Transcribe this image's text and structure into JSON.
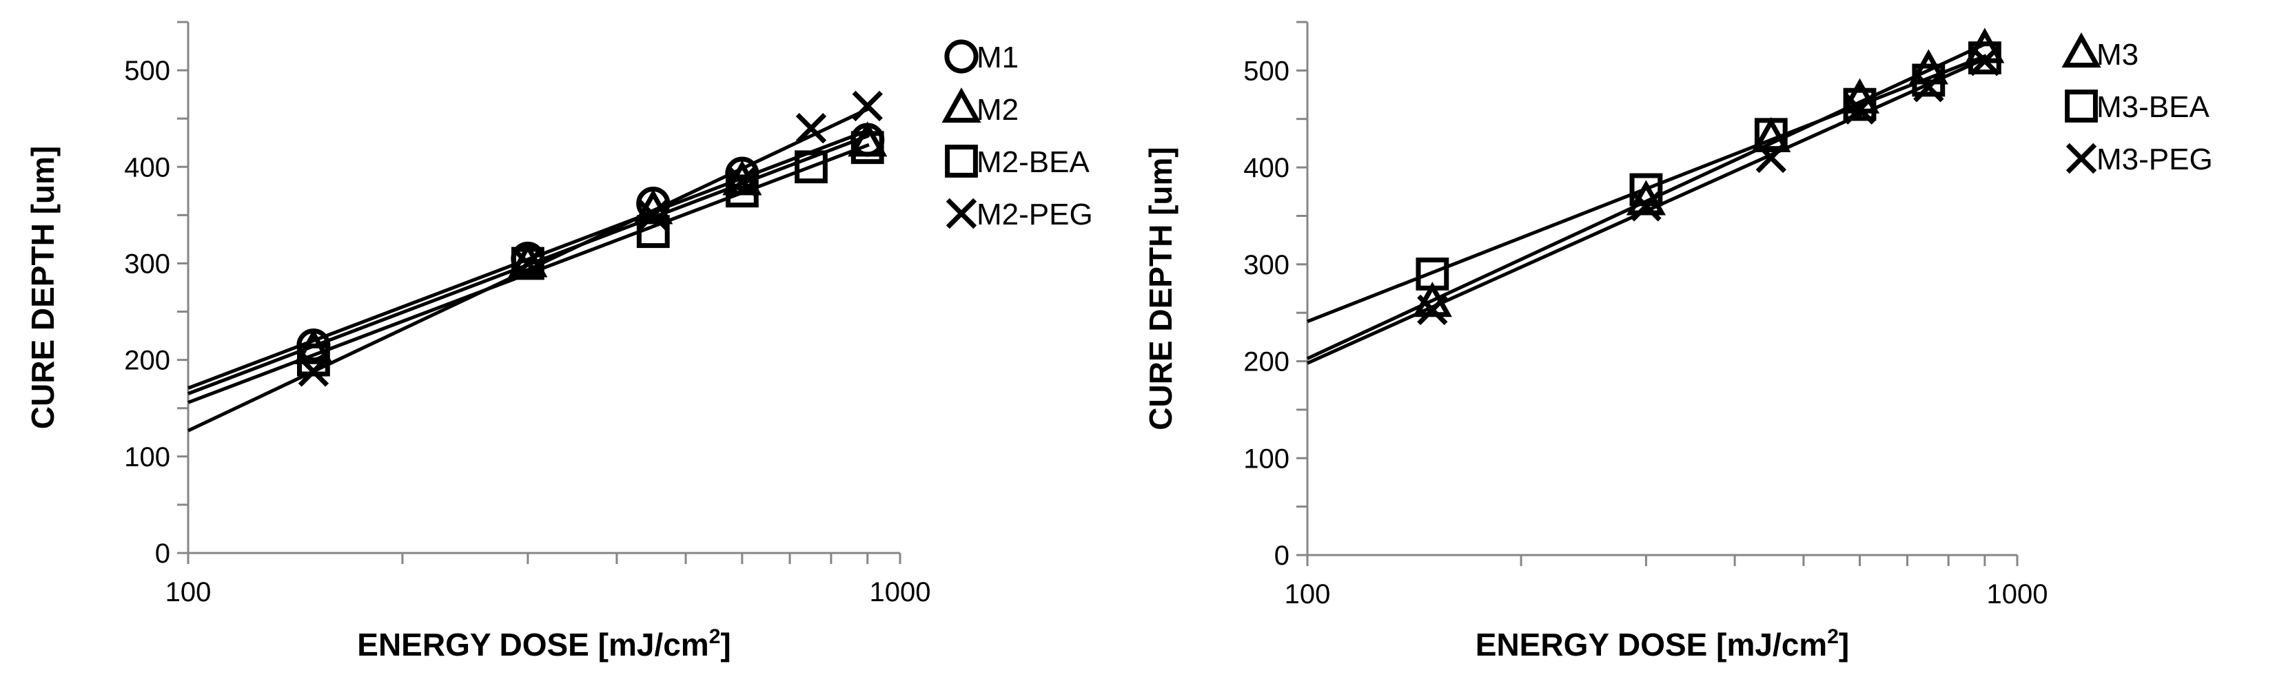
{
  "chart_data": [
    {
      "type": "scatter",
      "x_scale": "log",
      "xlim": [
        100,
        1000
      ],
      "ylim": [
        0,
        550
      ],
      "xlabel": "ENERGY DOSE [mJ/cm",
      "xlabel_superscript": "2",
      "xlabel_suffix": "]",
      "ylabel": "CURE DEPTH [um]",
      "x_ticks": [
        "100",
        "1000"
      ],
      "y_ticks": [
        "0",
        "100",
        "200",
        "300",
        "400",
        "500"
      ],
      "legend_position": "right",
      "trendlines": "logarithmic",
      "series": [
        {
          "name": "M1",
          "marker": "circle",
          "x": [
            150,
            300,
            450,
            600,
            900
          ],
          "y": [
            215,
            305,
            362,
            393,
            428
          ]
        },
        {
          "name": "M2",
          "marker": "triangle",
          "x": [
            150,
            300,
            450,
            600,
            900
          ],
          "y": [
            210,
            300,
            355,
            385,
            425
          ]
        },
        {
          "name": "M2-BEA",
          "marker": "square",
          "x": [
            150,
            300,
            450,
            600,
            750,
            900
          ],
          "y": [
            200,
            300,
            333,
            375,
            400,
            420
          ]
        },
        {
          "name": "M2-PEG",
          "marker": "x",
          "x": [
            150,
            300,
            450,
            600,
            750,
            900
          ],
          "y": [
            188,
            300,
            350,
            385,
            440,
            463
          ]
        }
      ]
    },
    {
      "type": "scatter",
      "x_scale": "log",
      "xlim": [
        100,
        1000
      ],
      "ylim": [
        0,
        550
      ],
      "xlabel": "ENERGY DOSE [mJ/cm",
      "xlabel_superscript": "2",
      "xlabel_suffix": "]",
      "ylabel": "CURE DEPTH [um]",
      "x_ticks": [
        "100",
        "1000"
      ],
      "y_ticks": [
        "0",
        "100",
        "200",
        "300",
        "400",
        "500"
      ],
      "legend_position": "right",
      "trendlines": "logarithmic",
      "series": [
        {
          "name": "M3",
          "marker": "triangle",
          "x": [
            150,
            300,
            450,
            600,
            750,
            900
          ],
          "y": [
            260,
            365,
            430,
            470,
            500,
            522
          ]
        },
        {
          "name": "M3-BEA",
          "marker": "square",
          "x": [
            150,
            300,
            450,
            600,
            750,
            900
          ],
          "y": [
            290,
            377,
            434,
            465,
            490,
            513
          ]
        },
        {
          "name": "M3-PEG",
          "marker": "x",
          "x": [
            150,
            300,
            450,
            600,
            750,
            900
          ],
          "y": [
            253,
            360,
            410,
            460,
            483,
            510
          ]
        }
      ]
    }
  ]
}
